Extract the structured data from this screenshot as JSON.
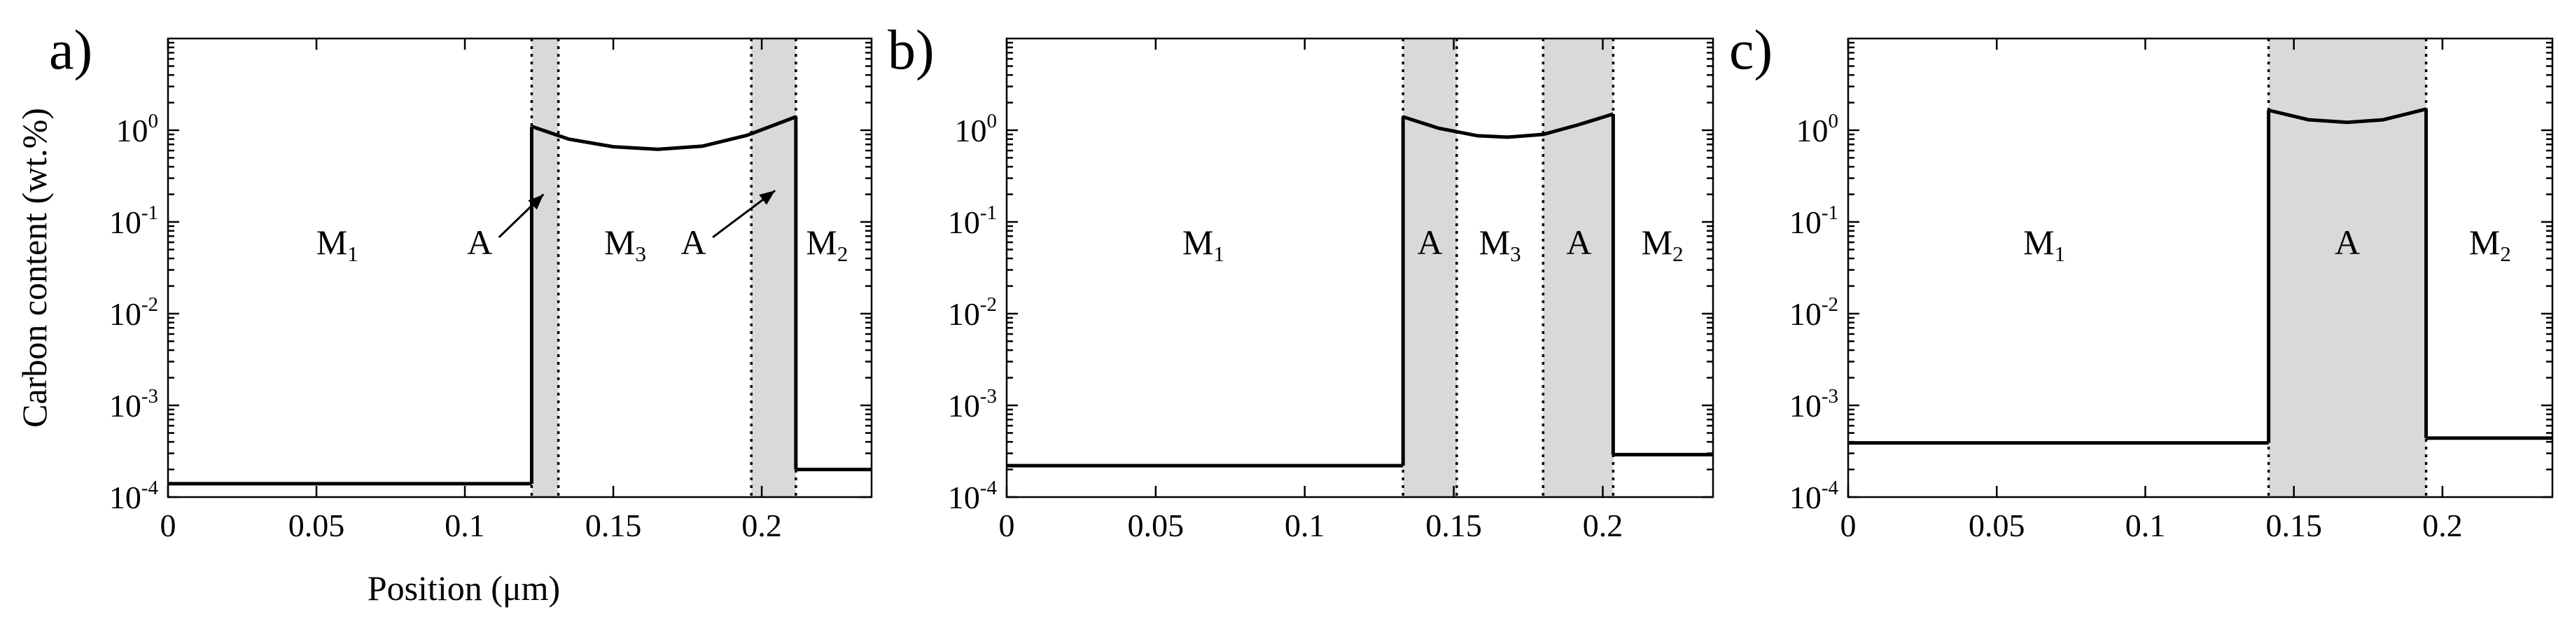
{
  "chart_data": [
    {
      "type": "line",
      "panel_label": "a)",
      "ylabel": "Carbon content (wt.%)",
      "xlabel": "Position (μm)",
      "xlim": [
        0,
        0.237
      ],
      "ylim": [
        0.0001,
        10
      ],
      "yscale": "log",
      "xticks": [
        0,
        0.05,
        0.1,
        0.15,
        0.2
      ],
      "xtick_labels": [
        "0",
        "0.05",
        "0.1",
        "0.15",
        "0.2"
      ],
      "ytick_labels": [
        {
          "base": "10",
          "exp": "-4"
        },
        {
          "base": "10",
          "exp": "-3"
        },
        {
          "base": "10",
          "exp": "-2"
        },
        {
          "base": "10",
          "exp": "-1"
        },
        {
          "base": "10",
          "exp": "0"
        }
      ],
      "boundaries": [
        0.1225,
        0.1315,
        0.1965,
        0.2115
      ],
      "shaded": [
        [
          0.1225,
          0.1315
        ],
        [
          0.1965,
          0.2115
        ]
      ],
      "series": [
        {
          "x": [
            0,
            0.1225
          ],
          "y": [
            0.00014,
            0.00014
          ]
        },
        {
          "x": [
            0.1225,
            0.135,
            0.15,
            0.165,
            0.18,
            0.195,
            0.2115
          ],
          "y": [
            1.1,
            0.8,
            0.66,
            0.62,
            0.67,
            0.88,
            1.4
          ]
        },
        {
          "x": [
            0.2115,
            0.237
          ],
          "y": [
            0.0002,
            0.0002
          ]
        }
      ],
      "regions": [
        {
          "text": "M",
          "sub": "1",
          "x": 0.057,
          "y": 0.06
        },
        {
          "text": "A",
          "sub": "",
          "x": 0.105,
          "y": 0.06
        },
        {
          "text": "M",
          "sub": "3",
          "x": 0.154,
          "y": 0.06
        },
        {
          "text": "A",
          "sub": "",
          "x": 0.177,
          "y": 0.06
        },
        {
          "text": "M",
          "sub": "2",
          "x": 0.222,
          "y": 0.06
        }
      ],
      "arrows": [
        {
          "from": [
            0.1115,
            0.068
          ],
          "to": [
            0.1265,
            0.2
          ]
        },
        {
          "from": [
            0.1835,
            0.068
          ],
          "to": [
            0.2045,
            0.22
          ]
        }
      ]
    },
    {
      "type": "line",
      "panel_label": "b)",
      "xlim": [
        0,
        0.237
      ],
      "ylim": [
        0.0001,
        10
      ],
      "yscale": "log",
      "xticks": [
        0,
        0.05,
        0.1,
        0.15,
        0.2
      ],
      "xtick_labels": [
        "0",
        "0.05",
        "0.1",
        "0.15",
        "0.2"
      ],
      "ytick_labels": [
        {
          "base": "10",
          "exp": "-4"
        },
        {
          "base": "10",
          "exp": "-3"
        },
        {
          "base": "10",
          "exp": "-2"
        },
        {
          "base": "10",
          "exp": "-1"
        },
        {
          "base": "10",
          "exp": "0"
        }
      ],
      "boundaries": [
        0.133,
        0.151,
        0.18,
        0.2035
      ],
      "shaded": [
        [
          0.133,
          0.151
        ],
        [
          0.18,
          0.2035
        ]
      ],
      "series": [
        {
          "x": [
            0,
            0.133
          ],
          "y": [
            0.00022,
            0.00022
          ]
        },
        {
          "x": [
            0.133,
            0.145,
            0.158,
            0.168,
            0.18,
            0.192,
            0.2035
          ],
          "y": [
            1.4,
            1.05,
            0.87,
            0.84,
            0.9,
            1.15,
            1.5
          ]
        },
        {
          "x": [
            0.2035,
            0.237
          ],
          "y": [
            0.00029,
            0.00029
          ]
        }
      ],
      "regions": [
        {
          "text": "M",
          "sub": "1",
          "x": 0.066,
          "y": 0.06
        },
        {
          "text": "A",
          "sub": "",
          "x": 0.142,
          "y": 0.06
        },
        {
          "text": "M",
          "sub": "3",
          "x": 0.1655,
          "y": 0.06
        },
        {
          "text": "A",
          "sub": "",
          "x": 0.192,
          "y": 0.06
        },
        {
          "text": "M",
          "sub": "2",
          "x": 0.22,
          "y": 0.06
        }
      ],
      "arrows": []
    },
    {
      "type": "line",
      "panel_label": "c)",
      "xlim": [
        0,
        0.237
      ],
      "ylim": [
        0.0001,
        10
      ],
      "yscale": "log",
      "xticks": [
        0,
        0.05,
        0.1,
        0.15,
        0.2
      ],
      "xtick_labels": [
        "0",
        "0.05",
        "0.1",
        "0.15",
        "0.2"
      ],
      "ytick_labels": [
        {
          "base": "10",
          "exp": "-4"
        },
        {
          "base": "10",
          "exp": "-3"
        },
        {
          "base": "10",
          "exp": "-2"
        },
        {
          "base": "10",
          "exp": "-1"
        },
        {
          "base": "10",
          "exp": "0"
        }
      ],
      "boundaries": [
        0.1415,
        0.1945
      ],
      "shaded": [
        [
          0.1415,
          0.1945
        ]
      ],
      "series": [
        {
          "x": [
            0,
            0.1415
          ],
          "y": [
            0.00039,
            0.00039
          ]
        },
        {
          "x": [
            0.1415,
            0.155,
            0.168,
            0.18,
            0.1945
          ],
          "y": [
            1.65,
            1.3,
            1.22,
            1.3,
            1.7
          ]
        },
        {
          "x": [
            0.1945,
            0.237
          ],
          "y": [
            0.00044,
            0.00044
          ]
        }
      ],
      "regions": [
        {
          "text": "M",
          "sub": "1",
          "x": 0.066,
          "y": 0.06
        },
        {
          "text": "A",
          "sub": "",
          "x": 0.168,
          "y": 0.06
        },
        {
          "text": "M",
          "sub": "2",
          "x": 0.216,
          "y": 0.06
        }
      ],
      "arrows": []
    }
  ]
}
